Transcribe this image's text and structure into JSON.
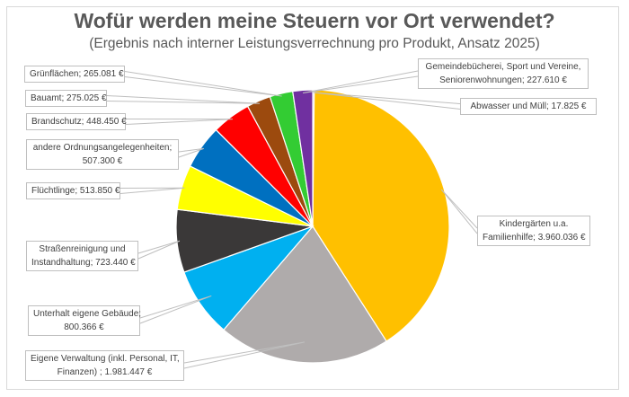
{
  "chart_data": {
    "type": "pie",
    "title": "Wofür werden meine Steuern vor Ort verwendet?",
    "subtitle": "(Ergebnis nach interner Leistungsverrechnung pro Produkt, Ansatz 2025)",
    "start_angle_deg": 0,
    "direction": "clockwise",
    "legend": "none",
    "slices": [
      {
        "name": "Abwasser und Müll",
        "value": 17825,
        "label_lines": [
          "Abwasser und Müll; 17.825 €"
        ],
        "color": "#c9b8e6"
      },
      {
        "name": "Kindergärten u.a. Familienhilfe",
        "value": 3960036,
        "label_lines": [
          "Kindergärten u.a.",
          "Familienhilfe; 3.960.036 €"
        ],
        "color": "#ffc000"
      },
      {
        "name": "Eigene Verwaltung (inkl. Personal, IT, Finanzen)",
        "value": 1981447,
        "label_lines": [
          "Eigene Verwaltung (inkl. Personal, IT,",
          "Finanzen) ; 1.981.447 €"
        ],
        "color": "#afabab"
      },
      {
        "name": "Unterhalt eigene Gebäude",
        "value": 800366,
        "label_lines": [
          "Unterhalt eigene Gebäude;",
          "800.366 €"
        ],
        "color": "#00b0f0"
      },
      {
        "name": "Straßenreinigung und Instandhaltung",
        "value": 723440,
        "label_lines": [
          "Straßenreinigung und",
          "Instandhaltung; 723.440 €"
        ],
        "color": "#3a3838"
      },
      {
        "name": "Flüchtlinge",
        "value": 513850,
        "label_lines": [
          "Flüchtlinge; 513.850 €"
        ],
        "color": "#ffff00"
      },
      {
        "name": "andere Ordnungsangelegenheiten",
        "value": 507300,
        "label_lines": [
          "andere Ordnungsangelegenheiten;",
          "507.300 €"
        ],
        "color": "#0070c0"
      },
      {
        "name": "Brandschutz",
        "value": 448450,
        "label_lines": [
          "Brandschutz; 448.450 €"
        ],
        "color": "#ff0000"
      },
      {
        "name": "Bauamt",
        "value": 275025,
        "label_lines": [
          "Bauamt; 275.025 €"
        ],
        "color": "#9c4a0e"
      },
      {
        "name": "Grünflächen",
        "value": 265081,
        "label_lines": [
          "Grünflächen; 265.081 €"
        ],
        "color": "#33cc33"
      },
      {
        "name": "Gemeindebücherei, Sport und Vereine, Seniorenwohnungen",
        "value": 227610,
        "label_lines": [
          "Gemeindebücherei, Sport und Vereine,",
          "Seniorenwohnungen; 227.610 €"
        ],
        "color": "#7030a0"
      }
    ]
  }
}
